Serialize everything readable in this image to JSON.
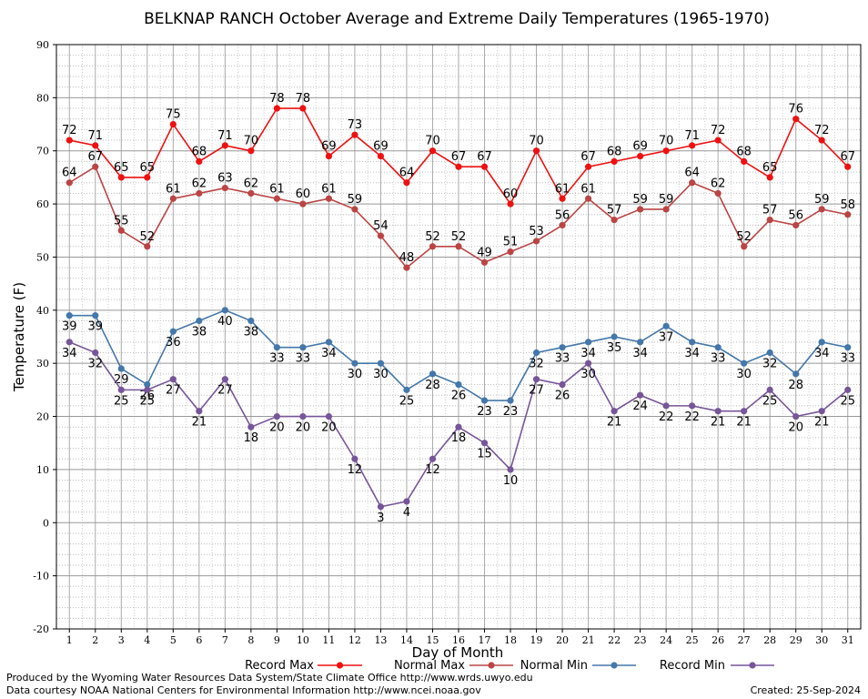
{
  "chart_data": {
    "type": "line",
    "title": "BELKNAP RANCH October Average and Extreme Daily Temperatures (1965-1970)",
    "xlabel": "Day of Month",
    "ylabel": "Temperature (F)",
    "ylim": [
      -20,
      90
    ],
    "yticks": [
      "-20",
      "-10",
      "0",
      "10",
      "20",
      "30",
      "40",
      "50",
      "60",
      "70",
      "80",
      "90"
    ],
    "x": [
      1,
      2,
      3,
      4,
      5,
      6,
      7,
      8,
      9,
      10,
      11,
      12,
      13,
      14,
      15,
      16,
      17,
      18,
      19,
      20,
      21,
      22,
      23,
      24,
      25,
      26,
      27,
      28,
      29,
      30,
      31
    ],
    "grid": true,
    "legend_position": "bottom",
    "series": [
      {
        "name": "Record Max",
        "color": "#ee1111",
        "label_pos": "above",
        "values": [
          72,
          71,
          65,
          65,
          75,
          68,
          71,
          70,
          78,
          78,
          69,
          73,
          69,
          64,
          70,
          67,
          67,
          60,
          70,
          61,
          67,
          68,
          69,
          70,
          71,
          72,
          68,
          65,
          76,
          72,
          67
        ]
      },
      {
        "name": "Normal Max",
        "color": "#bb4444",
        "label_pos": "above",
        "values": [
          64,
          67,
          55,
          52,
          61,
          62,
          63,
          62,
          61,
          60,
          61,
          59,
          54,
          48,
          52,
          52,
          49,
          51,
          53,
          56,
          61,
          57,
          59,
          59,
          64,
          62,
          52,
          57,
          56,
          59,
          58
        ]
      },
      {
        "name": "Normal Min",
        "color": "#4477aa",
        "label_pos": "below",
        "values": [
          39,
          39,
          29,
          26,
          36,
          38,
          40,
          38,
          33,
          33,
          34,
          30,
          30,
          25,
          28,
          26,
          23,
          23,
          32,
          33,
          34,
          35,
          34,
          37,
          34,
          33,
          30,
          32,
          28,
          34,
          33
        ]
      },
      {
        "name": "Record Min",
        "color": "#775599",
        "label_pos": "below",
        "values": [
          34,
          32,
          25,
          25,
          27,
          21,
          27,
          18,
          20,
          20,
          20,
          12,
          3,
          4,
          12,
          18,
          15,
          10,
          27,
          26,
          30,
          21,
          24,
          22,
          22,
          21,
          21,
          25,
          20,
          21,
          25
        ]
      }
    ]
  },
  "footer": {
    "left_line1": "Produced by the Wyoming Water Resources Data System/State Climate Office http://www.wrds.uwyo.edu",
    "left_line2": "Data courtesy NOAA National Centers for Environmental Information http://www.ncei.noaa.gov",
    "created": "Created:  25-Sep-2024"
  }
}
